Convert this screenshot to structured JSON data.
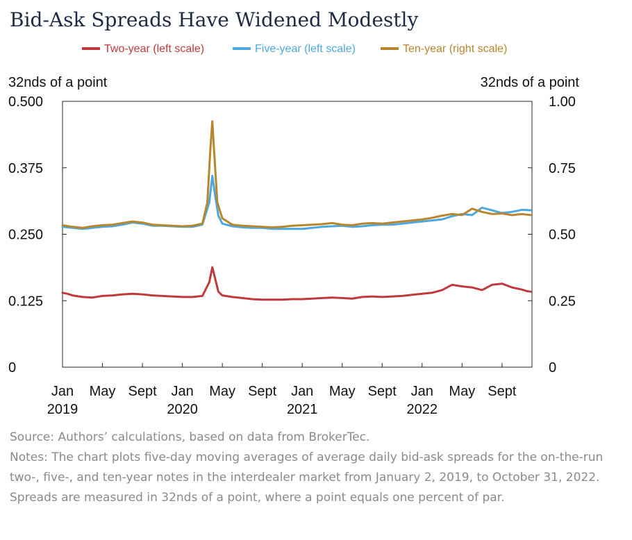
{
  "title": "Bid-Ask Spreads Have Widened Modestly",
  "chart_data": {
    "type": "line",
    "title": "Bid-Ask Spreads Have Widened Modestly",
    "ylabel_left": "32nds of a point",
    "ylabel_right": "32nds of a point",
    "ylim_left": [
      0,
      0.5
    ],
    "ylim_right": [
      0,
      1.0
    ],
    "yticks_left": [
      "0.500",
      "0.375",
      "0.250",
      "0.125",
      "0"
    ],
    "yticks_right": [
      "1.00",
      "0.75",
      "0.50",
      "0.25",
      "0"
    ],
    "x_range_months": [
      0,
      47
    ],
    "x_ticks": [
      {
        "month": 0,
        "label": "Jan",
        "year": "2019"
      },
      {
        "month": 4,
        "label": "May",
        "year": ""
      },
      {
        "month": 8,
        "label": "Sept",
        "year": ""
      },
      {
        "month": 12,
        "label": "Jan",
        "year": "2020"
      },
      {
        "month": 16,
        "label": "May",
        "year": ""
      },
      {
        "month": 20,
        "label": "Sept",
        "year": ""
      },
      {
        "month": 24,
        "label": "Jan",
        "year": "2021"
      },
      {
        "month": 28,
        "label": "May",
        "year": ""
      },
      {
        "month": 32,
        "label": "Sept",
        "year": ""
      },
      {
        "month": 36,
        "label": "Jan",
        "year": "2022"
      },
      {
        "month": 40,
        "label": "May",
        "year": ""
      },
      {
        "month": 44,
        "label": "Sept",
        "year": ""
      }
    ],
    "series": [
      {
        "name": "Two-year (left scale)",
        "axis": "left",
        "color": "#c0393b",
        "x": [
          0,
          0.5,
          1,
          2,
          3,
          4,
          5,
          6,
          7,
          8,
          9,
          10,
          11,
          12,
          13,
          14,
          14.7,
          15,
          15.3,
          15.6,
          16,
          17,
          18,
          19,
          20,
          21,
          22,
          23,
          24,
          25,
          26,
          27,
          28,
          29,
          30,
          31,
          32,
          33,
          34,
          35,
          36,
          37,
          38,
          39,
          40,
          41,
          42,
          43,
          44,
          45,
          46,
          46.5,
          46.9
        ],
        "values": [
          0.14,
          0.138,
          0.135,
          0.132,
          0.131,
          0.134,
          0.135,
          0.137,
          0.138,
          0.137,
          0.135,
          0.134,
          0.133,
          0.132,
          0.132,
          0.134,
          0.16,
          0.188,
          0.165,
          0.142,
          0.135,
          0.132,
          0.13,
          0.128,
          0.127,
          0.127,
          0.127,
          0.128,
          0.128,
          0.129,
          0.13,
          0.131,
          0.13,
          0.129,
          0.132,
          0.133,
          0.132,
          0.133,
          0.134,
          0.136,
          0.138,
          0.14,
          0.145,
          0.155,
          0.152,
          0.15,
          0.145,
          0.155,
          0.157,
          0.15,
          0.146,
          0.143,
          0.142
        ]
      },
      {
        "name": "Five-year (left scale)",
        "axis": "left",
        "color": "#4da8e0",
        "x": [
          0,
          1,
          2,
          3,
          4,
          5,
          6,
          7,
          8,
          9,
          10,
          11,
          12,
          13,
          14,
          14.7,
          15,
          15.3,
          15.6,
          16,
          17,
          18,
          19,
          20,
          21,
          22,
          23,
          24,
          25,
          26,
          27,
          28,
          29,
          30,
          31,
          32,
          33,
          34,
          35,
          36,
          37,
          38,
          39,
          40,
          41,
          42,
          43,
          44,
          45,
          46,
          46.9
        ],
        "values": [
          0.264,
          0.262,
          0.26,
          0.262,
          0.264,
          0.265,
          0.268,
          0.272,
          0.27,
          0.266,
          0.266,
          0.265,
          0.264,
          0.264,
          0.268,
          0.31,
          0.36,
          0.32,
          0.285,
          0.27,
          0.265,
          0.263,
          0.262,
          0.262,
          0.26,
          0.26,
          0.26,
          0.26,
          0.262,
          0.264,
          0.265,
          0.266,
          0.264,
          0.265,
          0.267,
          0.268,
          0.268,
          0.27,
          0.272,
          0.274,
          0.276,
          0.278,
          0.284,
          0.288,
          0.286,
          0.3,
          0.295,
          0.29,
          0.292,
          0.296,
          0.295
        ]
      },
      {
        "name": "Ten-year (right scale)",
        "axis": "right",
        "color": "#b8862c",
        "x": [
          0,
          1,
          2,
          3,
          4,
          5,
          6,
          7,
          8,
          9,
          10,
          11,
          12,
          13,
          14,
          14.5,
          14.8,
          15,
          15.2,
          15.5,
          16,
          17,
          18,
          19,
          20,
          21,
          22,
          23,
          24,
          25,
          26,
          27,
          28,
          29,
          30,
          31,
          32,
          33,
          34,
          35,
          36,
          37,
          38,
          39,
          40,
          41,
          42,
          43,
          44,
          45,
          46,
          46.9
        ],
        "values": [
          0.534,
          0.528,
          0.524,
          0.53,
          0.534,
          0.536,
          0.542,
          0.548,
          0.544,
          0.536,
          0.534,
          0.532,
          0.53,
          0.532,
          0.54,
          0.62,
          0.82,
          0.925,
          0.8,
          0.62,
          0.56,
          0.536,
          0.532,
          0.53,
          0.528,
          0.526,
          0.528,
          0.532,
          0.534,
          0.536,
          0.538,
          0.542,
          0.536,
          0.534,
          0.54,
          0.542,
          0.54,
          0.544,
          0.548,
          0.552,
          0.556,
          0.562,
          0.57,
          0.576,
          0.572,
          0.596,
          0.584,
          0.576,
          0.578,
          0.572,
          0.576,
          0.572
        ]
      }
    ]
  },
  "legend": [
    {
      "label": "Two-year (left scale)",
      "color": "#c0393b"
    },
    {
      "label": "Five-year (left scale)",
      "color": "#4da8e0"
    },
    {
      "label": "Ten-year (right scale)",
      "color": "#b8862c"
    }
  ],
  "footer": {
    "source": "Source: Authors’ calculations, based on data from BrokerTec.",
    "notes": "Notes: The chart plots five-day moving averages of average daily bid-ask spreads for the on-the-run two-, five-, and ten-year notes in the interdealer market from January 2, 2019, to October 31, 2022. Spreads are measured in 32nds of a point, where a point equals one percent of par."
  }
}
